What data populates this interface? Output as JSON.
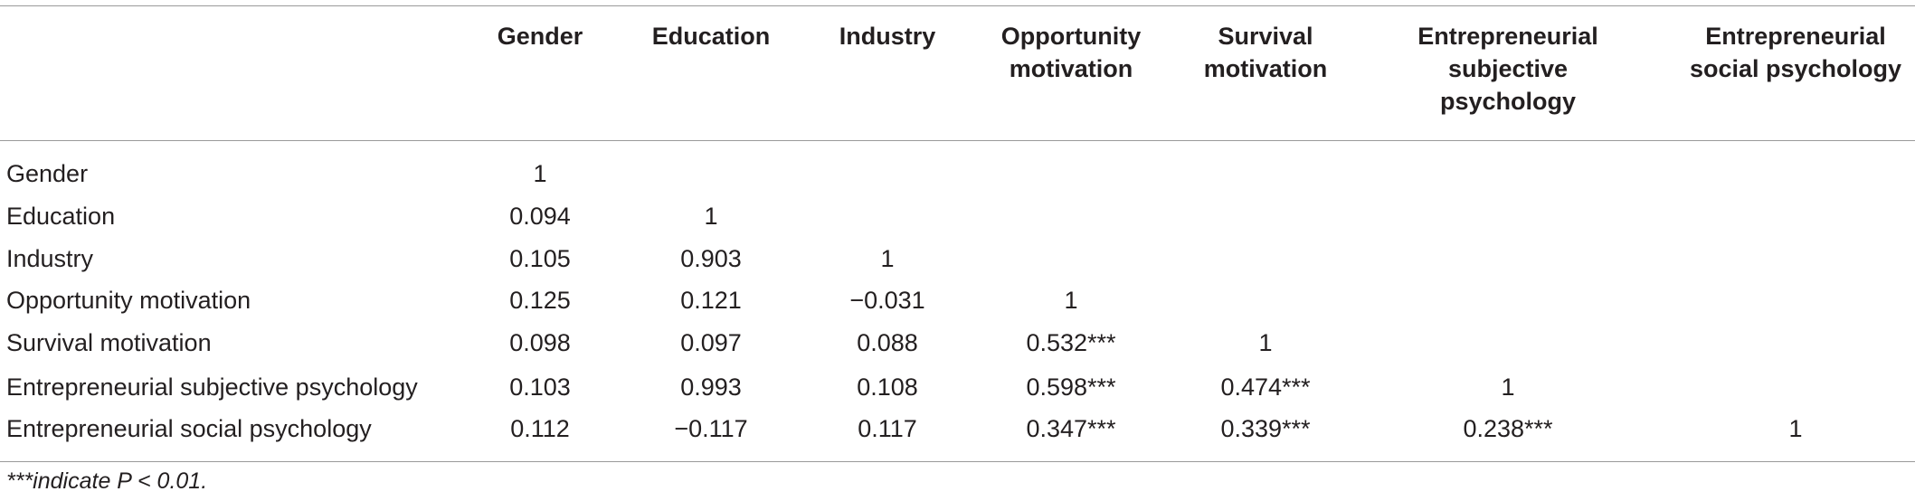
{
  "table": {
    "columns": [
      "Gender",
      "Education",
      "Industry",
      "Opportunity motivation",
      "Survival motivation",
      "Entrepreneurial subjective psychology",
      "Entrepreneurial social psychology"
    ],
    "rows": [
      [
        "Gender",
        "1",
        "",
        "",
        "",
        "",
        "",
        ""
      ],
      [
        "Education",
        "0.094",
        "1",
        "",
        "",
        "",
        "",
        ""
      ],
      [
        "Industry",
        "0.105",
        "0.903",
        "1",
        "",
        "",
        "",
        ""
      ],
      [
        "Opportunity motivation",
        "0.125",
        "0.121",
        "−0.031",
        "1",
        "",
        "",
        ""
      ],
      [
        "Survival motivation",
        "0.098",
        "0.097",
        "0.088",
        "0.532***",
        "1",
        "",
        ""
      ],
      [
        "Entrepreneurial subjective psychology",
        "0.103",
        "0.993",
        "0.108",
        "0.598***",
        "0.474***",
        "1",
        ""
      ],
      [
        "Entrepreneurial social psychology",
        "0.112",
        "−0.117",
        "0.117",
        "0.347***",
        "0.339***",
        "0.238***",
        "1"
      ]
    ],
    "footnote": "***indicate P < 0.01."
  }
}
